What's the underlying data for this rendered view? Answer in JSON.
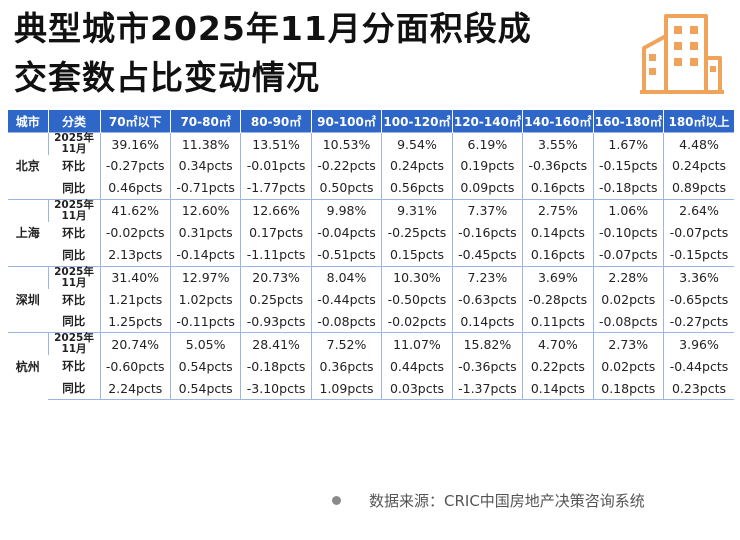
{
  "title_line1": "典型城市2025年11月分面积段成",
  "title_line2": "交套数占比变动情况",
  "header": {
    "city": "城市",
    "category": "分类",
    "bands": [
      "70㎡以下",
      "70-80㎡",
      "80-90㎡",
      "90-100㎡",
      "100-120㎡",
      "120-140㎡",
      "140-160㎡",
      "160-180㎡",
      "180㎡以上"
    ]
  },
  "row_labels": {
    "period": "2025年11月",
    "mom": "环比",
    "yoy": "同比"
  },
  "cities": [
    {
      "name": "北京",
      "share": [
        "39.16%",
        "11.38%",
        "13.51%",
        "10.53%",
        "9.54%",
        "6.19%",
        "3.55%",
        "1.67%",
        "4.48%"
      ],
      "mom": [
        "-0.27pcts",
        "0.34pcts",
        "-0.01pcts",
        "-0.22pcts",
        "0.24pcts",
        "0.19pcts",
        "-0.36pcts",
        "-0.15pcts",
        "0.24pcts"
      ],
      "yoy": [
        "0.46pcts",
        "-0.71pcts",
        "-1.77pcts",
        "0.50pcts",
        "0.56pcts",
        "0.09pcts",
        "0.16pcts",
        "-0.18pcts",
        "0.89pcts"
      ]
    },
    {
      "name": "上海",
      "share": [
        "41.62%",
        "12.60%",
        "12.66%",
        "9.98%",
        "9.31%",
        "7.37%",
        "2.75%",
        "1.06%",
        "2.64%"
      ],
      "mom": [
        "-0.02pcts",
        "0.31pcts",
        "0.17pcts",
        "-0.04pcts",
        "-0.25pcts",
        "-0.16pcts",
        "0.14pcts",
        "-0.10pcts",
        "-0.07pcts"
      ],
      "yoy": [
        "2.13pcts",
        "-0.14pcts",
        "-1.11pcts",
        "-0.51pcts",
        "0.15pcts",
        "-0.45pcts",
        "0.16pcts",
        "-0.07pcts",
        "-0.15pcts"
      ]
    },
    {
      "name": "深圳",
      "share": [
        "31.40%",
        "12.97%",
        "20.73%",
        "8.04%",
        "10.30%",
        "7.23%",
        "3.69%",
        "2.28%",
        "3.36%"
      ],
      "mom": [
        "1.21pcts",
        "1.02pcts",
        "0.25pcts",
        "-0.44pcts",
        "-0.50pcts",
        "-0.63pcts",
        "-0.28pcts",
        "0.02pcts",
        "-0.65pcts"
      ],
      "yoy": [
        "1.25pcts",
        "-0.11pcts",
        "-0.93pcts",
        "-0.08pcts",
        "-0.02pcts",
        "0.14pcts",
        "0.11pcts",
        "-0.08pcts",
        "-0.27pcts"
      ]
    },
    {
      "name": "杭州",
      "share": [
        "20.74%",
        "5.05%",
        "28.41%",
        "7.52%",
        "11.07%",
        "15.82%",
        "4.70%",
        "2.73%",
        "3.96%"
      ],
      "mom": [
        "-0.60pcts",
        "0.54pcts",
        "-0.18pcts",
        "0.36pcts",
        "0.44pcts",
        "-0.36pcts",
        "0.22pcts",
        "0.02pcts",
        "-0.44pcts"
      ],
      "yoy": [
        "2.24pcts",
        "0.54pcts",
        "-3.10pcts",
        "1.09pcts",
        "0.03pcts",
        "-1.37pcts",
        "0.14pcts",
        "0.18pcts",
        "0.23pcts"
      ]
    }
  ],
  "source": "数据来源：CRIC中国房地产决策咨询系统",
  "colors": {
    "header_bg": "#2f67c8",
    "positive": "#d81e1e",
    "negative": "#2da832",
    "logo": "#f0a35a"
  },
  "logo_icon": "city-buildings-icon"
}
